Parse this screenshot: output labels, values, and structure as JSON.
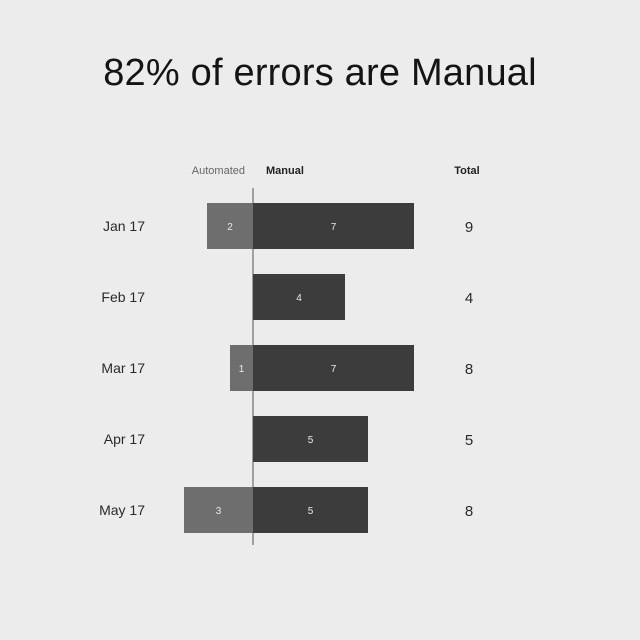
{
  "title": "82% of errors are Manual",
  "chart_data": {
    "type": "bar",
    "orientation": "horizontal-diverging",
    "categories": [
      "Jan 17",
      "Feb 17",
      "Mar 17",
      "Apr 17",
      "May 17"
    ],
    "series": [
      {
        "name": "Automated",
        "values": [
          2,
          0,
          1,
          0,
          3
        ],
        "color": "#6e6e6e"
      },
      {
        "name": "Manual",
        "values": [
          7,
          4,
          7,
          5,
          5
        ],
        "color": "#3c3c3c"
      }
    ],
    "totals_header": "Total",
    "totals": [
      9,
      4,
      8,
      5,
      8
    ],
    "legend_placement": "top",
    "grid": false
  }
}
